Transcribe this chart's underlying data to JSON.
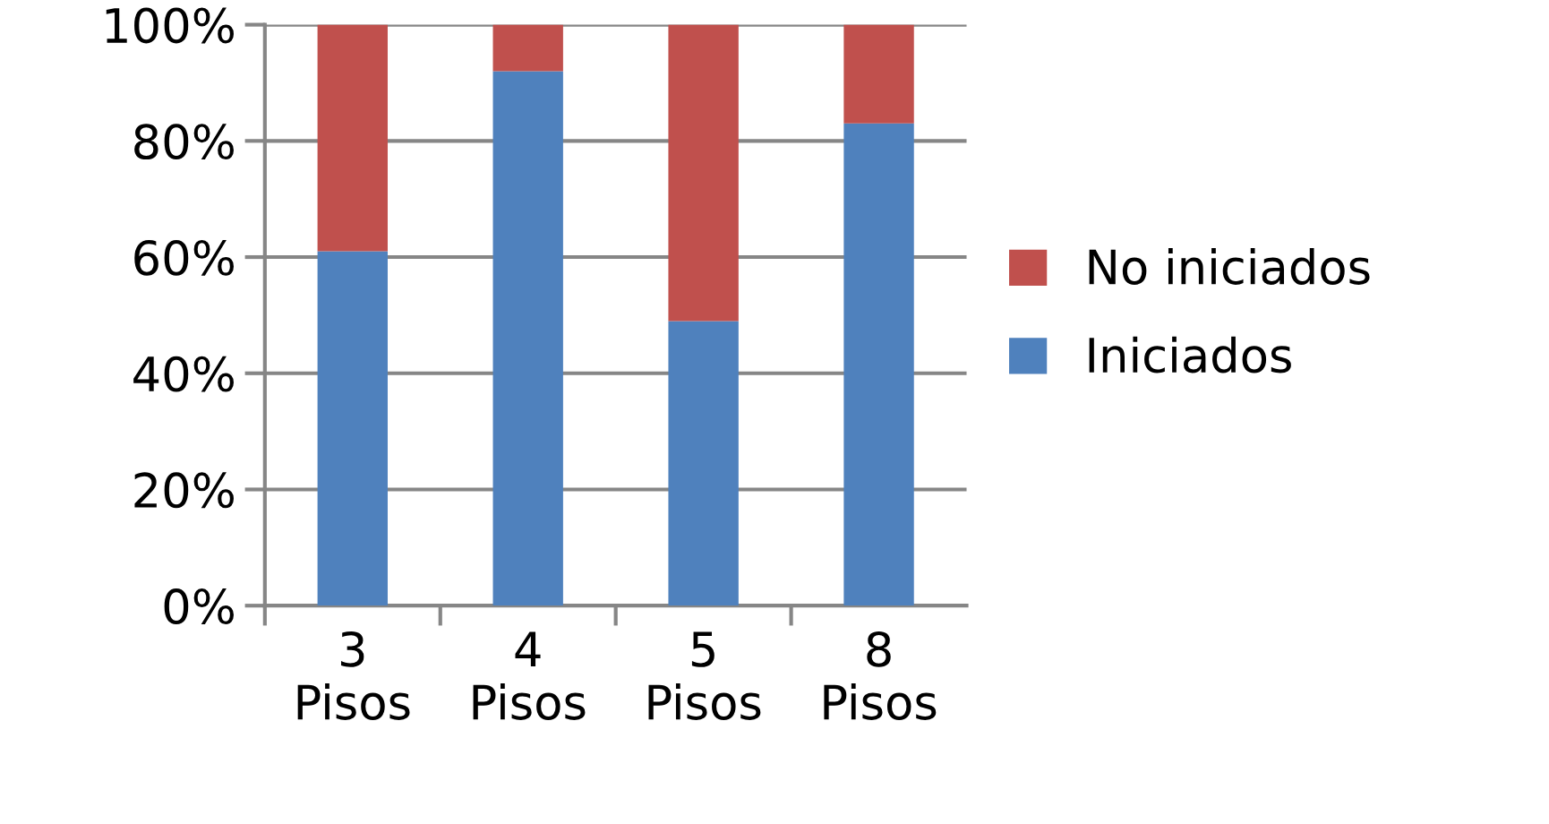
{
  "chart_data": {
    "type": "bar",
    "stacked": true,
    "categories": [
      "3 Pisos",
      "4 Pisos",
      "5 Pisos",
      "8 Pisos"
    ],
    "series": [
      {
        "name": "Iniciados",
        "color": "#4f81bd",
        "values": [
          61,
          92,
          49,
          83
        ]
      },
      {
        "name": "No iniciados",
        "color": "#c0504d",
        "values": [
          39,
          8,
          51,
          17
        ]
      }
    ],
    "ylim": [
      0,
      100
    ],
    "yticks": [
      {
        "value": 0,
        "label": "0%"
      },
      {
        "value": 20,
        "label": "20%"
      },
      {
        "value": 40,
        "label": "40%"
      },
      {
        "value": 60,
        "label": "60%"
      },
      {
        "value": 80,
        "label": "80%"
      },
      {
        "value": 100,
        "label": "100%"
      }
    ],
    "grid": "y",
    "legend": "right"
  }
}
